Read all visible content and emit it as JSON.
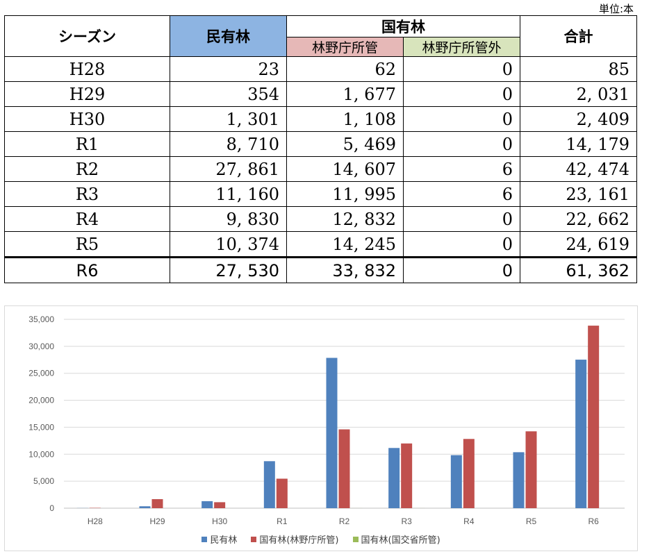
{
  "unit": "単位:本",
  "table": {
    "headers": {
      "season": "シーズン",
      "private": "民有林",
      "national": "国有林",
      "forestry_agency": "林野庁所管",
      "outside_forestry_agency": "林野庁所管外",
      "total": "合計"
    },
    "rows": [
      {
        "season": "H28",
        "private": "23",
        "fa": "62",
        "nonfa": "0",
        "total": "85"
      },
      {
        "season": "H29",
        "private": "354",
        "fa": "1, 677",
        "nonfa": "0",
        "total": "2, 031"
      },
      {
        "season": "H30",
        "private": "1, 301",
        "fa": "1, 108",
        "nonfa": "0",
        "total": "2, 409"
      },
      {
        "season": "R1",
        "private": "8, 710",
        "fa": "5, 469",
        "nonfa": "0",
        "total": "14, 179"
      },
      {
        "season": "R2",
        "private": "27, 861",
        "fa": "14, 607",
        "nonfa": "6",
        "total": "42, 474"
      },
      {
        "season": "R3",
        "private": "11, 160",
        "fa": "11, 995",
        "nonfa": "6",
        "total": "23, 161"
      },
      {
        "season": "R4",
        "private": "9, 830",
        "fa": "12, 832",
        "nonfa": "0",
        "total": "22, 662"
      },
      {
        "season": "R5",
        "private": "10, 374",
        "fa": "14, 245",
        "nonfa": "0",
        "total": "24, 619"
      },
      {
        "season": "R6",
        "private": "27, 530",
        "fa": "33, 832",
        "nonfa": "0",
        "total": "61, 362"
      }
    ]
  },
  "chart_data": {
    "type": "bar",
    "categories": [
      "H28",
      "H29",
      "H30",
      "R1",
      "R2",
      "R3",
      "R4",
      "R5",
      "R6"
    ],
    "series": [
      {
        "name": "民有林",
        "color": "#4f81bd",
        "values": [
          23,
          354,
          1301,
          8710,
          27861,
          11160,
          9830,
          10374,
          27530
        ]
      },
      {
        "name": "国有林(林野庁所管)",
        "color": "#c0504d",
        "values": [
          62,
          1677,
          1108,
          5469,
          14607,
          11995,
          12832,
          14245,
          33832
        ]
      },
      {
        "name": "国有林(国交省所管)",
        "color": "#9bbb59",
        "values": [
          0,
          0,
          0,
          0,
          6,
          6,
          0,
          0,
          0
        ]
      }
    ],
    "ylim": [
      0,
      35000
    ],
    "yticks": [
      0,
      5000,
      10000,
      15000,
      20000,
      25000,
      30000,
      35000
    ],
    "ytick_labels": [
      "0",
      "5,000",
      "10,000",
      "15,000",
      "20,000",
      "25,000",
      "30,000",
      "35,000"
    ],
    "grid": true,
    "legend": "bottom"
  }
}
